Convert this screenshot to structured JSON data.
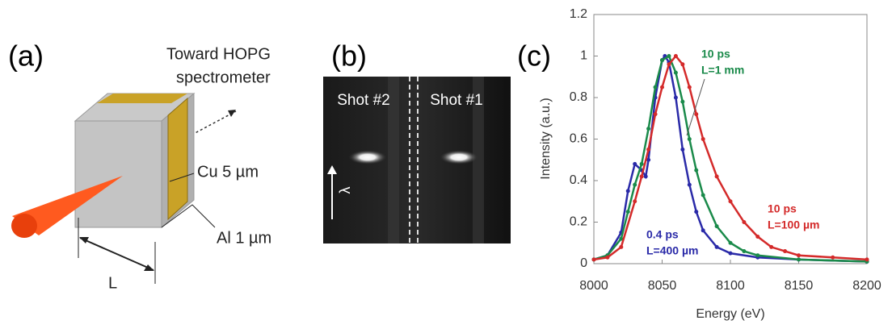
{
  "panel_a": {
    "label": "(a)",
    "direction_line1": "Toward HOPG",
    "direction_line2": "spectrometer",
    "cu_layer": "Cu 5 µm",
    "al_layer": "Al 1 µm",
    "distance": "L"
  },
  "panel_b": {
    "label": "(b)",
    "shot_left": "Shot #2",
    "shot_right": "Shot #1",
    "axis_symbol": "λ"
  },
  "chart_data": {
    "type": "line",
    "panel_label": "(c)",
    "xlabel": "Energy (eV)",
    "ylabel": "Intensity (a.u.)",
    "xlim": [
      8000,
      8200
    ],
    "xticks": [
      8000,
      8050,
      8100,
      8150,
      8200
    ],
    "ylim": [
      0,
      1.2
    ],
    "yticks": [
      0,
      0.2,
      0.4,
      0.6,
      0.8,
      1,
      1.2
    ],
    "series": [
      {
        "name": "0.4 ps",
        "detail": "L=400 µm",
        "color": "#2a2aa8",
        "x": [
          8000,
          8010,
          8020,
          8025,
          8030,
          8035,
          8038,
          8040,
          8045,
          8050,
          8052,
          8055,
          8060,
          8065,
          8070,
          8075,
          8080,
          8090,
          8100,
          8120,
          8150,
          8200
        ],
        "values": [
          0.02,
          0.04,
          0.15,
          0.35,
          0.48,
          0.45,
          0.42,
          0.5,
          0.8,
          0.98,
          1.0,
          0.97,
          0.8,
          0.55,
          0.38,
          0.25,
          0.16,
          0.08,
          0.05,
          0.03,
          0.02,
          0.01
        ]
      },
      {
        "name": "10 ps",
        "detail": "L=1 mm",
        "color": "#1a8a4a",
        "x": [
          8000,
          8010,
          8020,
          8025,
          8030,
          8035,
          8040,
          8045,
          8050,
          8055,
          8060,
          8065,
          8070,
          8075,
          8080,
          8090,
          8100,
          8110,
          8120,
          8150,
          8200
        ],
        "values": [
          0.02,
          0.04,
          0.12,
          0.25,
          0.38,
          0.48,
          0.65,
          0.85,
          0.98,
          1.0,
          0.92,
          0.78,
          0.6,
          0.45,
          0.33,
          0.18,
          0.1,
          0.06,
          0.04,
          0.02,
          0.01
        ]
      },
      {
        "name": "10 ps",
        "detail": "L=100 µm",
        "color": "#d42a2a",
        "x": [
          8000,
          8010,
          8020,
          8030,
          8035,
          8040,
          8045,
          8050,
          8055,
          8060,
          8065,
          8070,
          8075,
          8080,
          8090,
          8100,
          8110,
          8120,
          8130,
          8140,
          8150,
          8175,
          8200
        ],
        "values": [
          0.02,
          0.03,
          0.08,
          0.3,
          0.42,
          0.55,
          0.72,
          0.85,
          0.96,
          1.0,
          0.96,
          0.85,
          0.72,
          0.6,
          0.42,
          0.3,
          0.2,
          0.13,
          0.08,
          0.06,
          0.04,
          0.03,
          0.02
        ]
      }
    ]
  }
}
